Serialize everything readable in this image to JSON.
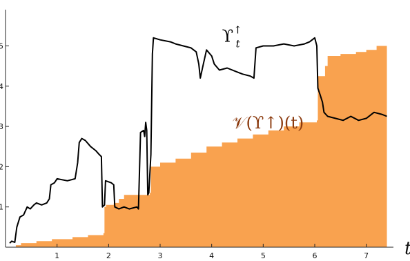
{
  "chart_data": {
    "type": "line",
    "title": "",
    "xlabel": "t",
    "ylabel": "",
    "xlim": [
      0,
      7.5
    ],
    "ylim": [
      0,
      5.9
    ],
    "grid": false,
    "legend": "none",
    "x_ticks": [
      1,
      2,
      3,
      4,
      5,
      6,
      7
    ],
    "y_ticks": [
      1,
      2,
      3,
      4,
      5
    ],
    "annotations": [
      {
        "text": "ϒ",
        "sup": "↑",
        "sub": "t",
        "color": "#000000",
        "at": [
          4.2,
          5.1
        ]
      },
      {
        "text": "𝒱(ϒ↑)(t)",
        "color": "#8B3A0E",
        "at": [
          4.4,
          2.95
        ]
      }
    ],
    "series": [
      {
        "kind": "area-step",
        "color": "#F9A24F",
        "points": [
          [
            0.2,
            0.05
          ],
          [
            0.3,
            0.1
          ],
          [
            0.6,
            0.15
          ],
          [
            0.9,
            0.2
          ],
          [
            1.3,
            0.25
          ],
          [
            1.6,
            0.3
          ],
          [
            1.9,
            0.35
          ],
          [
            1.92,
            1.0
          ],
          [
            1.95,
            1.05
          ],
          [
            2.1,
            1.1
          ],
          [
            2.2,
            1.2
          ],
          [
            2.3,
            1.3
          ],
          [
            2.8,
            1.35
          ],
          [
            2.82,
            2.0
          ],
          [
            3.0,
            2.1
          ],
          [
            3.3,
            2.2
          ],
          [
            3.6,
            2.35
          ],
          [
            3.9,
            2.5
          ],
          [
            4.2,
            2.6
          ],
          [
            4.5,
            2.7
          ],
          [
            4.8,
            2.8
          ],
          [
            5.1,
            2.9
          ],
          [
            5.4,
            3.0
          ],
          [
            5.7,
            3.1
          ],
          [
            6.04,
            3.15
          ],
          [
            6.06,
            4.25
          ],
          [
            6.2,
            4.5
          ],
          [
            6.25,
            4.75
          ],
          [
            6.5,
            4.8
          ],
          [
            6.8,
            4.85
          ],
          [
            7.0,
            4.9
          ],
          [
            7.2,
            5.0
          ],
          [
            7.4,
            5.0
          ]
        ]
      },
      {
        "kind": "line",
        "color": "#000000",
        "points": [
          [
            0.08,
            0.1
          ],
          [
            0.12,
            0.15
          ],
          [
            0.18,
            0.12
          ],
          [
            0.22,
            0.5
          ],
          [
            0.28,
            0.75
          ],
          [
            0.35,
            0.8
          ],
          [
            0.42,
            1.0
          ],
          [
            0.48,
            0.95
          ],
          [
            0.55,
            1.05
          ],
          [
            0.6,
            1.1
          ],
          [
            0.7,
            1.05
          ],
          [
            0.8,
            1.1
          ],
          [
            0.85,
            1.2
          ],
          [
            0.88,
            1.55
          ],
          [
            0.95,
            1.6
          ],
          [
            1.0,
            1.7
          ],
          [
            1.2,
            1.65
          ],
          [
            1.35,
            1.7
          ],
          [
            1.4,
            2.1
          ],
          [
            1.43,
            2.6
          ],
          [
            1.48,
            2.7
          ],
          [
            1.55,
            2.65
          ],
          [
            1.65,
            2.5
          ],
          [
            1.75,
            2.4
          ],
          [
            1.82,
            2.3
          ],
          [
            1.86,
            2.25
          ],
          [
            1.88,
            1.0
          ],
          [
            1.92,
            1.05
          ],
          [
            1.94,
            1.65
          ],
          [
            2.05,
            1.6
          ],
          [
            2.1,
            1.55
          ],
          [
            2.12,
            1.0
          ],
          [
            2.2,
            0.95
          ],
          [
            2.3,
            1.0
          ],
          [
            2.4,
            0.95
          ],
          [
            2.55,
            1.0
          ],
          [
            2.58,
            0.95
          ],
          [
            2.62,
            2.85
          ],
          [
            2.68,
            2.9
          ],
          [
            2.7,
            2.75
          ],
          [
            2.72,
            3.1
          ],
          [
            2.74,
            2.9
          ],
          [
            2.76,
            1.3
          ],
          [
            2.78,
            1.35
          ],
          [
            2.82,
            2.3
          ],
          [
            2.85,
            4.8
          ],
          [
            2.87,
            5.2
          ],
          [
            3.0,
            5.15
          ],
          [
            3.2,
            5.1
          ],
          [
            3.3,
            5.05
          ],
          [
            3.45,
            5.0
          ],
          [
            3.6,
            4.95
          ],
          [
            3.7,
            4.85
          ],
          [
            3.75,
            4.55
          ],
          [
            3.78,
            4.2
          ],
          [
            3.83,
            4.5
          ],
          [
            3.9,
            4.9
          ],
          [
            4.0,
            4.75
          ],
          [
            4.05,
            4.55
          ],
          [
            4.15,
            4.4
          ],
          [
            4.3,
            4.45
          ],
          [
            4.5,
            4.35
          ],
          [
            4.6,
            4.3
          ],
          [
            4.75,
            4.25
          ],
          [
            4.82,
            4.2
          ],
          [
            4.86,
            4.95
          ],
          [
            5.0,
            5.0
          ],
          [
            5.2,
            5.0
          ],
          [
            5.4,
            5.05
          ],
          [
            5.6,
            5.0
          ],
          [
            5.8,
            5.05
          ],
          [
            5.9,
            5.1
          ],
          [
            6.0,
            5.2
          ],
          [
            6.04,
            5.0
          ],
          [
            6.06,
            3.95
          ],
          [
            6.1,
            3.8
          ],
          [
            6.15,
            3.6
          ],
          [
            6.18,
            3.35
          ],
          [
            6.25,
            3.25
          ],
          [
            6.4,
            3.2
          ],
          [
            6.55,
            3.15
          ],
          [
            6.7,
            3.25
          ],
          [
            6.85,
            3.15
          ],
          [
            7.0,
            3.2
          ],
          [
            7.15,
            3.35
          ],
          [
            7.3,
            3.3
          ],
          [
            7.4,
            3.25
          ]
        ]
      }
    ]
  }
}
